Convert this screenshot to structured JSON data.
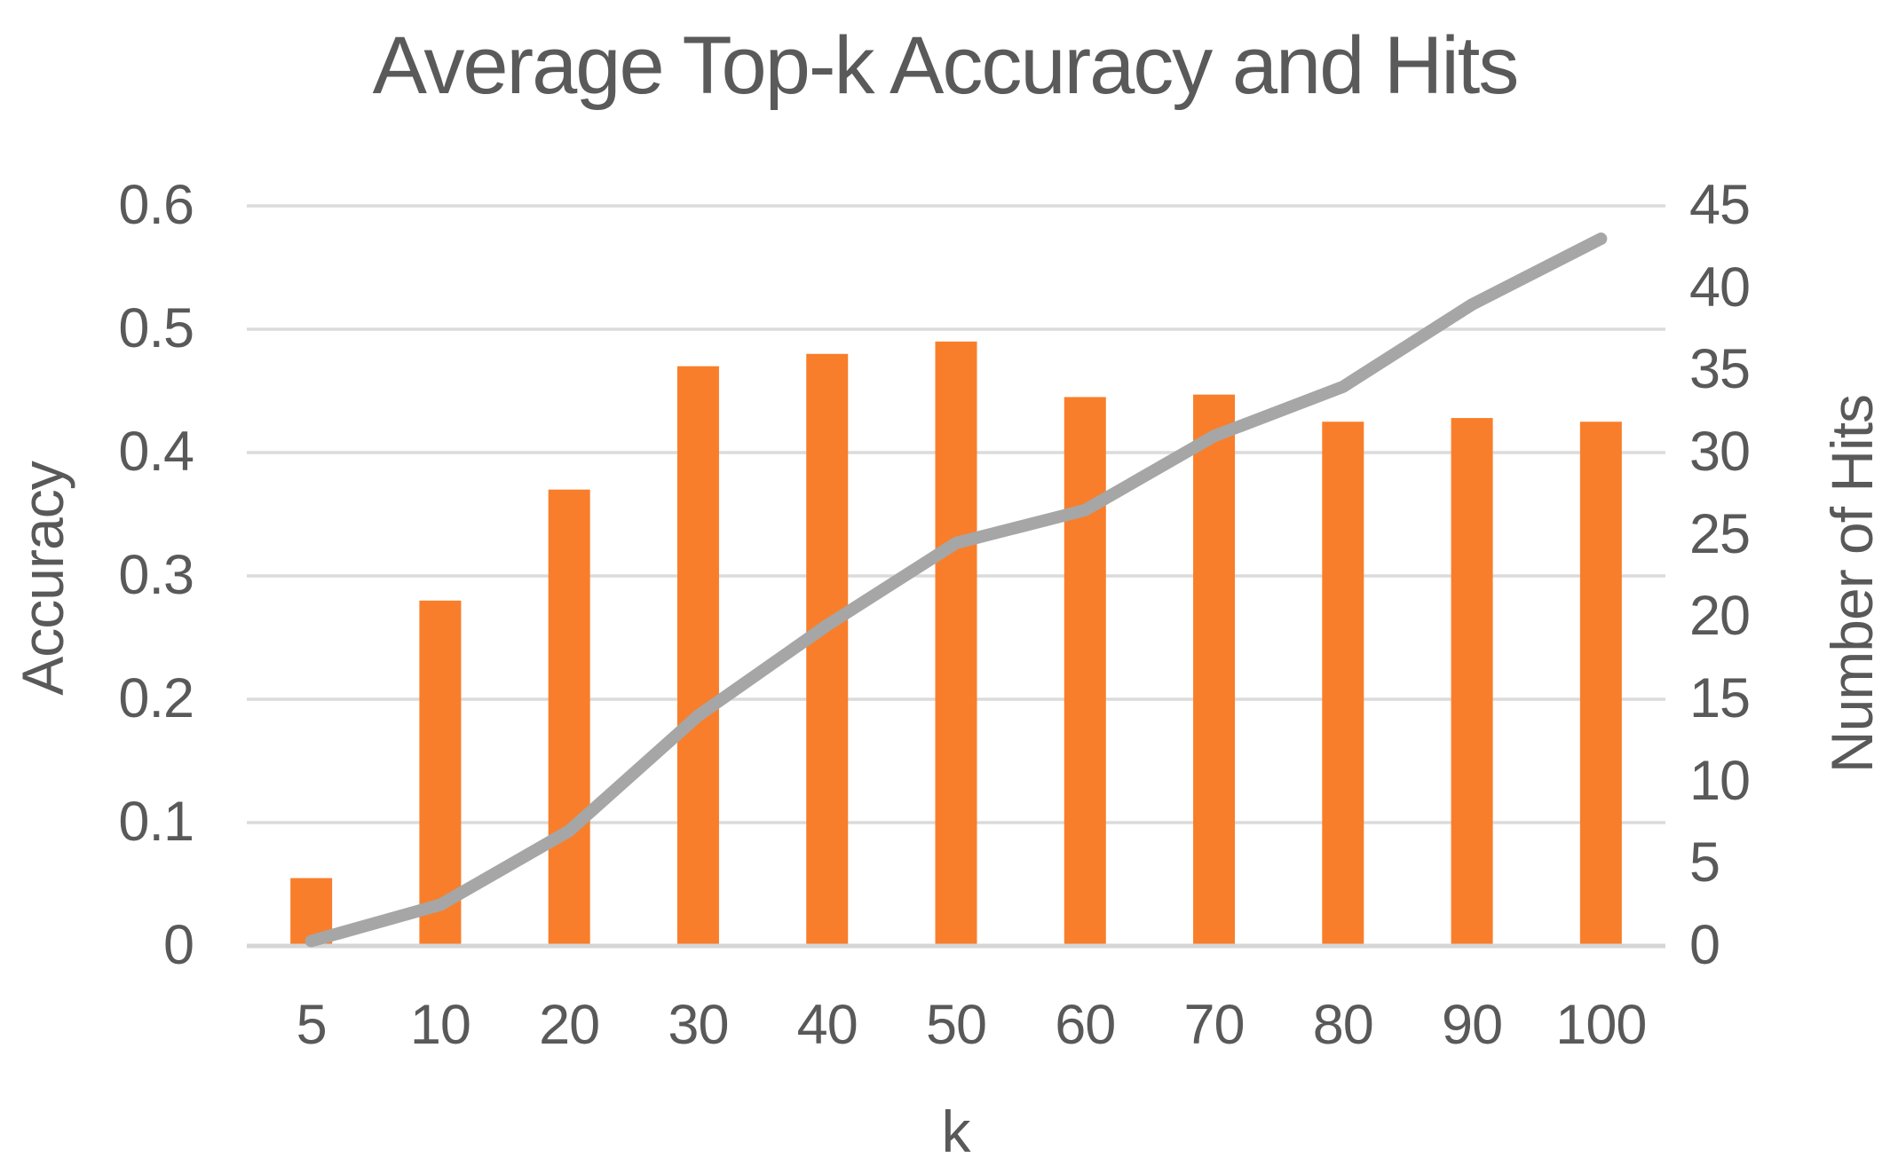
{
  "title": "Average Top-k Accuracy and Hits",
  "chart_data": {
    "type": "bar",
    "title": "Average Top-k Accuracy and Hits",
    "xlabel": "k",
    "ylabel_left": "Accuracy",
    "ylabel_right": "Number of Hits",
    "categories": [
      "5",
      "10",
      "20",
      "30",
      "40",
      "50",
      "60",
      "70",
      "80",
      "90",
      "100"
    ],
    "series": [
      {
        "name": "Accuracy",
        "type": "bar",
        "axis": "left",
        "color": "#F87E2B",
        "values": [
          0.055,
          0.28,
          0.37,
          0.47,
          0.48,
          0.49,
          0.445,
          0.447,
          0.425,
          0.428,
          0.425
        ]
      },
      {
        "name": "Number of Hits",
        "type": "line",
        "axis": "right",
        "color": "#A6A6A6",
        "values": [
          0.3,
          2.5,
          7,
          14,
          19.5,
          24.5,
          26.5,
          31,
          34,
          39,
          43
        ]
      }
    ],
    "ylim_left": [
      0,
      0.6
    ],
    "ylim_right": [
      0,
      45
    ],
    "yticks_left": [
      "0",
      "0.1",
      "0.2",
      "0.3",
      "0.4",
      "0.5",
      "0.6"
    ],
    "yticks_right": [
      "0",
      "5",
      "10",
      "15",
      "20",
      "25",
      "30",
      "35",
      "40",
      "45"
    ],
    "grid": true,
    "legend": false
  },
  "colors": {
    "text": "#595959",
    "gridline": "#DBDBDB",
    "axis_line": "#D6D6D6",
    "bar": "#F87E2B",
    "line": "#A6A6A6",
    "background": "#FFFFFF"
  }
}
